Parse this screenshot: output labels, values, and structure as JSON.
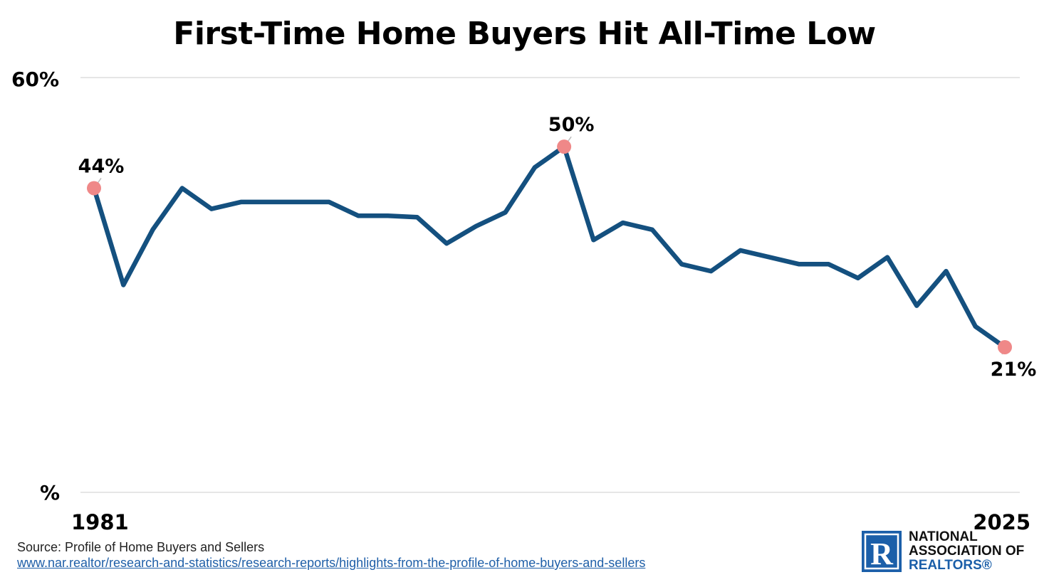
{
  "title": "First-Time Home Buyers Hit All-Time Low",
  "chart_data": {
    "type": "line",
    "x_start_label": "1981",
    "x_end_label": "2025",
    "y_top_label": "60%",
    "y_bottom_label": "%",
    "ylim": [
      0,
      60
    ],
    "grid": true,
    "line_color": "#14507f",
    "marker_color": "#ef8888",
    "values": [
      44,
      30,
      38,
      44,
      41,
      42,
      42,
      42,
      42,
      40,
      40,
      39.8,
      36,
      38.5,
      40.5,
      47,
      50,
      36.5,
      39,
      38,
      33,
      32,
      35,
      34,
      33,
      33,
      31,
      34,
      27,
      32,
      24,
      21
    ],
    "annotations": [
      {
        "index": 0,
        "label": "44%"
      },
      {
        "index": 16,
        "label": "50%"
      },
      {
        "index": 31,
        "label": "21%"
      }
    ]
  },
  "source": {
    "text": "Source: Profile of Home Buyers and Sellers",
    "url": "www.nar.realtor/research-and-statistics/research-reports/highlights-from-the-profile-of-home-buyers-and-sellers"
  },
  "logo": {
    "lines": [
      "NATIONAL",
      "ASSOCIATION OF",
      "REALTORS®"
    ],
    "mark_letter": "R",
    "color": "#1b5fa9"
  }
}
